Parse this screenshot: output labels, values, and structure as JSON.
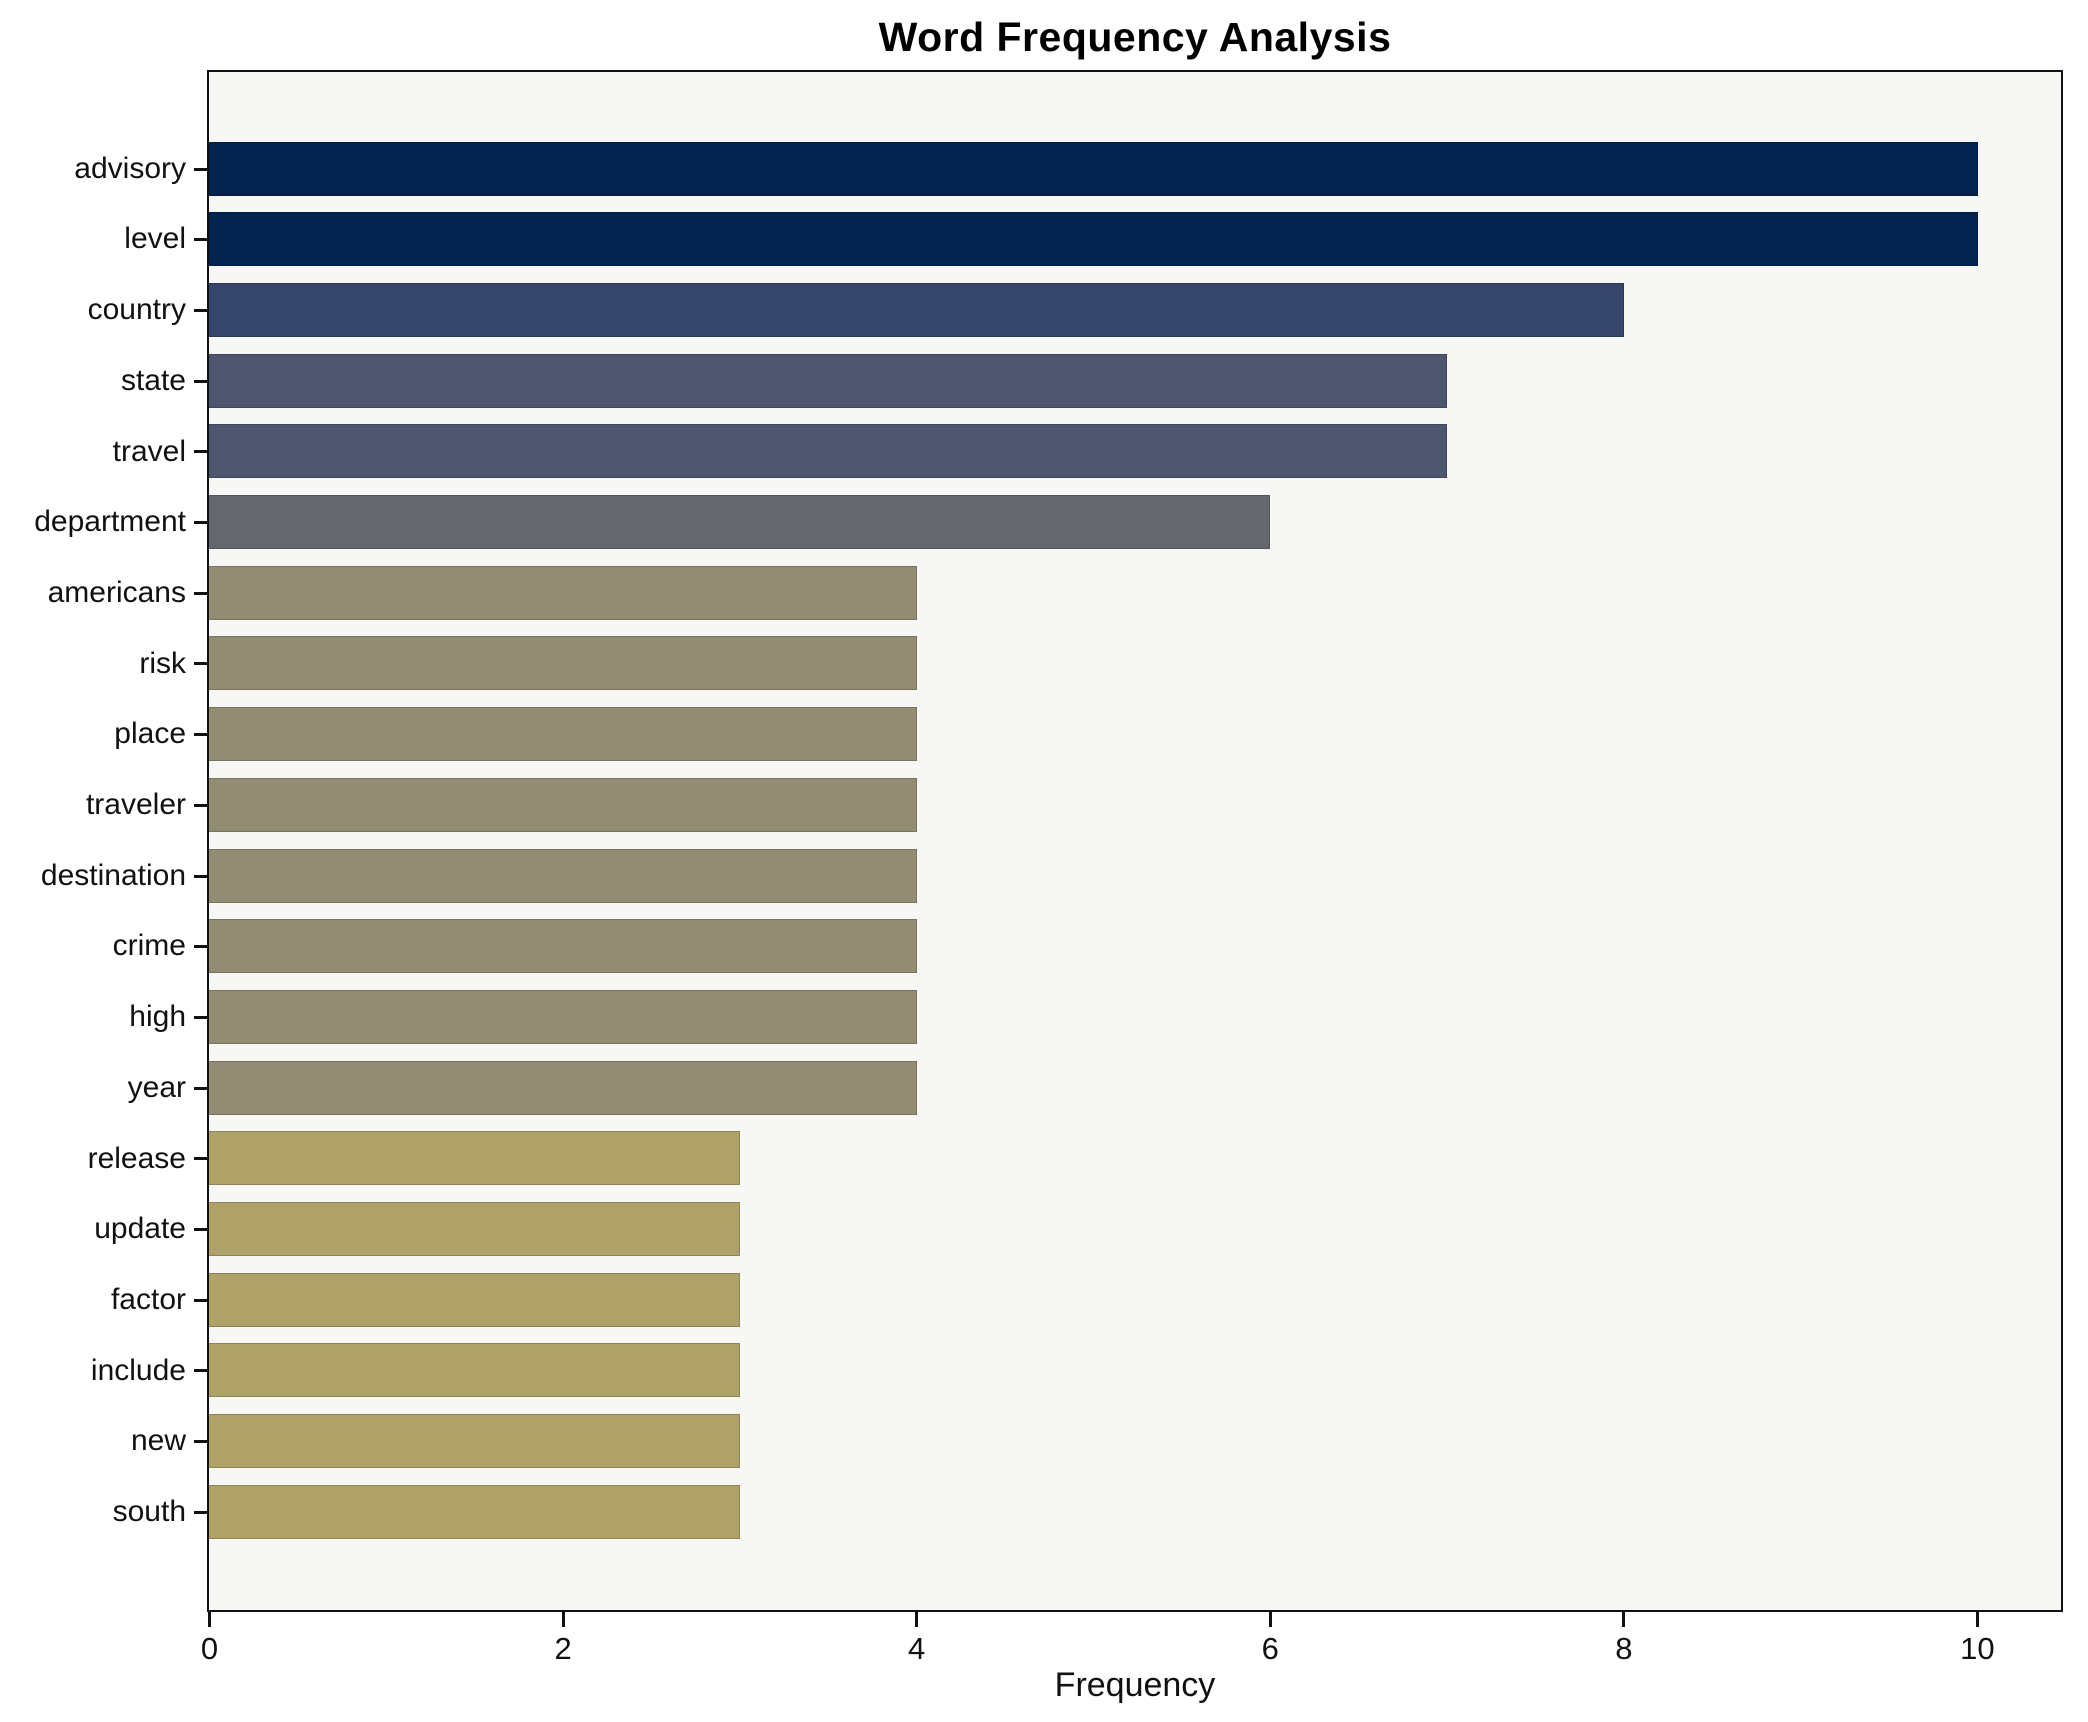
{
  "title": "Word Frequency Analysis",
  "xlabel": "Frequency",
  "chart_data": {
    "type": "bar",
    "orientation": "horizontal",
    "title": "Word Frequency Analysis",
    "xlabel": "Frequency",
    "ylabel": "",
    "xlim": [
      0,
      10.47
    ],
    "x_ticks": [
      0,
      2,
      4,
      6,
      8,
      10
    ],
    "grid": false,
    "legend": null,
    "categories": [
      "advisory",
      "level",
      "country",
      "state",
      "travel",
      "department",
      "americans",
      "risk",
      "place",
      "traveler",
      "destination",
      "crime",
      "high",
      "year",
      "release",
      "update",
      "factor",
      "include",
      "new",
      "south"
    ],
    "values": [
      10,
      10,
      8,
      7,
      7,
      6,
      4,
      4,
      4,
      4,
      4,
      4,
      4,
      4,
      3,
      3,
      3,
      3,
      3,
      3
    ],
    "bar_colors": [
      "#01234e",
      "#01234e",
      "#36456b",
      "#4d566e",
      "#4d566e",
      "#65676f",
      "#928d72",
      "#928d72",
      "#928d72",
      "#928d72",
      "#928d72",
      "#928d72",
      "#928d72",
      "#928d72",
      "#aea268",
      "#aea268",
      "#aea268",
      "#aea268",
      "#aea268",
      "#aea268"
    ]
  },
  "colors": {
    "plot_background": "#f7f7f5",
    "figure_background": "#ffffff",
    "spine": "#111111",
    "text": "#111111",
    "color_high": "#01234e",
    "color_low": "#aea268"
  }
}
